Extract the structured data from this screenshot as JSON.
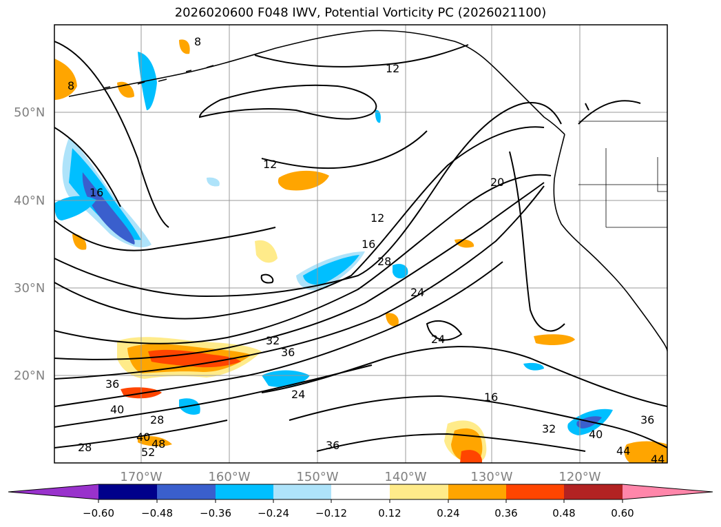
{
  "title": "2026020600 F048 IWV, Potential Vorticity PC (2026021100)",
  "lat_labels": [
    "50°N",
    "40°N",
    "30°N",
    "20°N"
  ],
  "lon_labels": [
    "170°W",
    "160°W",
    "150°W",
    "140°W",
    "130°W",
    "120°W"
  ],
  "contour_labels": [
    "8",
    "8",
    "12",
    "12",
    "12",
    "16",
    "16",
    "16",
    "20",
    "24",
    "24",
    "24",
    "28",
    "28",
    "28",
    "32",
    "32",
    "36",
    "36",
    "36",
    "36",
    "40",
    "40",
    "40",
    "44",
    "44",
    "48",
    "52"
  ],
  "colorbar": {
    "tick_labels": [
      "−0.60",
      "−0.48",
      "−0.36",
      "−0.24",
      "−0.12",
      "0.12",
      "0.24",
      "0.36",
      "0.48",
      "0.60"
    ],
    "colors": [
      "#9932cc",
      "#00008b",
      "#3a5fcd",
      "#00bfff",
      "#aee3fa",
      "#ffffff",
      "#ffeb8a",
      "#ffa500",
      "#ff4500",
      "#b22222",
      "#ff86aa"
    ]
  }
}
